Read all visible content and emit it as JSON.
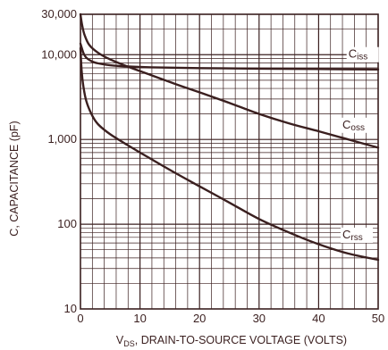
{
  "chart_data": {
    "type": "line",
    "xlabel_main": "V",
    "xlabel_sub": "DS",
    "xlabel_rest": ", DRAIN-TO-SOURCE VOLTAGE (VOLTS)",
    "ylabel": "C, CAPACITANCE (pF)",
    "xlim": [
      0,
      50
    ],
    "ylim": [
      10,
      30000
    ],
    "y_scale": "log",
    "grid": true,
    "x_ticks": [
      {
        "value": 0,
        "label": "0"
      },
      {
        "value": 10,
        "label": "10"
      },
      {
        "value": 20,
        "label": "20"
      },
      {
        "value": 30,
        "label": "30"
      },
      {
        "value": 40,
        "label": "40"
      },
      {
        "value": 50,
        "label": "50"
      }
    ],
    "y_ticks": [
      {
        "value": 10,
        "label": "10"
      },
      {
        "value": 100,
        "label": "100"
      },
      {
        "value": 1000,
        "label": "1,000"
      },
      {
        "value": 10000,
        "label": "10,000"
      },
      {
        "value": 30000,
        "label": "30,000"
      }
    ],
    "series": [
      {
        "name_main": "C",
        "name_sub": "iss",
        "label_at": {
          "x": 45,
          "y": 9200
        },
        "x": [
          0,
          0.5,
          1,
          2,
          3,
          5,
          8,
          12,
          20,
          30,
          40,
          50
        ],
        "y": [
          13500,
          10500,
          9200,
          8300,
          7900,
          7500,
          7250,
          7100,
          6950,
          6850,
          6780,
          6700
        ]
      },
      {
        "name_main": "C",
        "name_sub": "oss",
        "label_at": {
          "x": 44,
          "y": 1350
        },
        "x": [
          0,
          0.3,
          0.7,
          1.5,
          3,
          5,
          8,
          12,
          16,
          20,
          25,
          30,
          35,
          40,
          45,
          50
        ],
        "y": [
          30000,
          22000,
          17000,
          13000,
          10500,
          8800,
          7200,
          5700,
          4500,
          3600,
          2700,
          2000,
          1550,
          1250,
          1000,
          800
        ]
      },
      {
        "name_main": "C",
        "name_sub": "rss",
        "label_at": {
          "x": 44,
          "y": 68
        },
        "x": [
          0,
          0.2,
          0.5,
          1,
          2,
          3,
          5,
          8,
          12,
          16,
          20,
          25,
          30,
          35,
          40,
          45,
          50
        ],
        "y": [
          12000,
          6500,
          4200,
          2800,
          1900,
          1500,
          1150,
          850,
          580,
          400,
          280,
          180,
          115,
          80,
          58,
          45,
          38
        ]
      }
    ]
  }
}
